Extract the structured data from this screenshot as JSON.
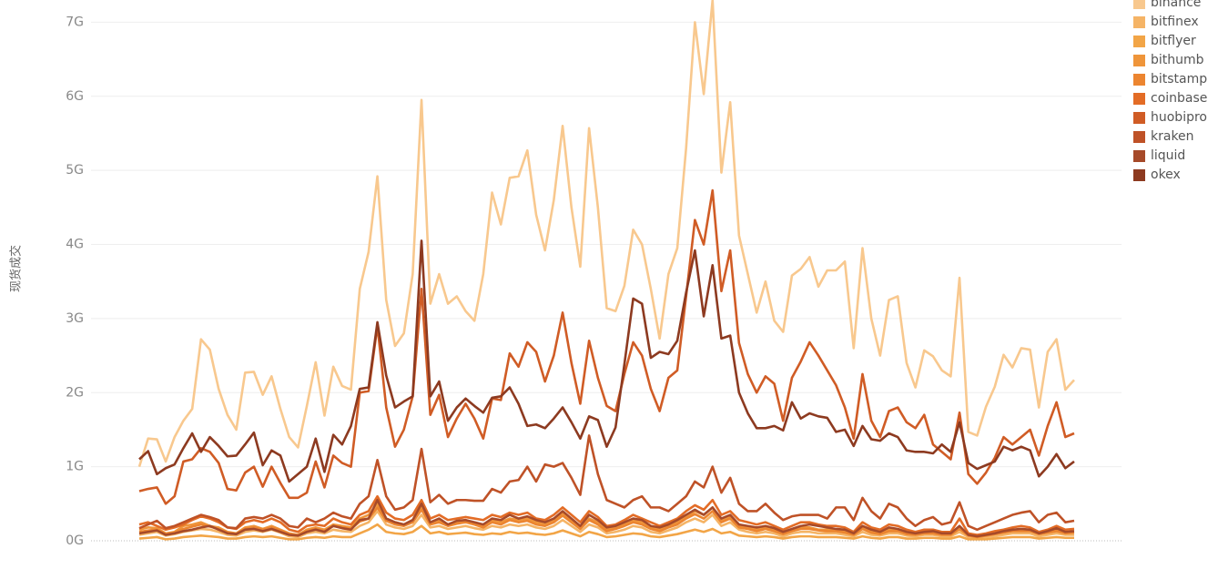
{
  "chart_data": {
    "type": "line",
    "y_label": "现货成交",
    "categories": [
      null,
      null,
      null,
      null,
      null,
      null,
      null,
      null,
      null,
      null,
      null,
      null,
      null,
      null,
      null,
      null,
      null,
      null,
      null,
      null,
      null,
      null,
      null,
      null,
      null,
      null,
      null,
      null,
      null,
      null,
      null,
      null,
      null,
      null,
      null,
      null,
      null,
      null,
      null,
      null,
      null,
      null,
      null,
      null,
      null,
      null,
      null,
      null,
      null,
      null,
      null,
      null,
      null,
      null,
      null,
      null,
      null,
      null,
      null,
      null,
      null,
      null,
      null,
      null,
      null,
      null,
      null,
      null,
      null,
      null,
      null,
      null,
      null,
      null,
      null,
      null,
      null,
      null,
      null,
      null,
      null,
      null,
      null,
      null,
      null,
      null,
      null,
      null,
      null,
      null,
      null,
      null,
      null,
      null,
      null,
      null,
      null,
      null,
      null,
      null,
      null,
      null,
      null,
      null,
      null,
      null,
      null
    ],
    "ylim": [
      0,
      7.3
    ],
    "yticks": [
      {
        "value": 0,
        "label": "0G"
      },
      {
        "value": 1,
        "label": "1G"
      },
      {
        "value": 2,
        "label": "2G"
      },
      {
        "value": 3,
        "label": "3G"
      },
      {
        "value": 4,
        "label": "4G"
      },
      {
        "value": 5,
        "label": "5G"
      },
      {
        "value": 6,
        "label": "6G"
      },
      {
        "value": 7,
        "label": "7G"
      }
    ],
    "grid": true,
    "legend": "right",
    "series": [
      {
        "name": "binance",
        "color": "#f8c88e",
        "values": [
          1.0,
          1.38,
          1.37,
          1.07,
          1.4,
          1.62,
          1.78,
          2.72,
          2.58,
          2.05,
          1.7,
          1.5,
          2.27,
          2.28,
          1.97,
          2.22,
          1.78,
          1.4,
          1.26,
          1.82,
          2.41,
          1.69,
          2.35,
          2.09,
          2.04,
          3.4,
          3.9,
          4.92,
          3.25,
          2.63,
          2.8,
          3.6,
          5.95,
          3.2,
          3.6,
          3.2,
          3.3,
          3.1,
          2.97,
          3.6,
          4.7,
          4.27,
          4.9,
          4.92,
          5.27,
          4.4,
          3.92,
          4.6,
          5.6,
          4.5,
          3.7,
          5.57,
          4.5,
          3.14,
          3.1,
          3.44,
          4.2,
          4.0,
          3.4,
          2.73,
          3.6,
          3.95,
          5.3,
          7.0,
          6.03,
          7.3,
          4.97,
          5.92,
          4.12,
          3.6,
          3.08,
          3.5,
          2.97,
          2.82,
          3.58,
          3.67,
          3.83,
          3.43,
          3.65,
          3.65,
          3.77,
          2.6,
          3.95,
          3.0,
          2.5,
          3.25,
          3.3,
          2.4,
          2.07,
          2.57,
          2.49,
          2.3,
          2.22,
          3.55,
          1.47,
          1.42,
          1.81,
          2.08,
          2.51,
          2.34,
          2.6,
          2.58,
          1.8,
          2.55,
          2.72,
          2.04,
          2.17
        ]
      },
      {
        "name": "bitfinex",
        "color": "#f5b466",
        "values": [
          0.08,
          0.1,
          0.12,
          0.07,
          0.09,
          0.12,
          0.14,
          0.16,
          0.15,
          0.12,
          0.08,
          0.07,
          0.12,
          0.14,
          0.12,
          0.15,
          0.11,
          0.06,
          0.05,
          0.1,
          0.12,
          0.1,
          0.15,
          0.13,
          0.12,
          0.2,
          0.25,
          0.4,
          0.22,
          0.18,
          0.16,
          0.2,
          0.35,
          0.18,
          0.2,
          0.16,
          0.18,
          0.2,
          0.17,
          0.15,
          0.2,
          0.18,
          0.22,
          0.2,
          0.22,
          0.18,
          0.16,
          0.2,
          0.28,
          0.2,
          0.12,
          0.22,
          0.18,
          0.1,
          0.12,
          0.15,
          0.2,
          0.18,
          0.12,
          0.1,
          0.14,
          0.18,
          0.25,
          0.3,
          0.25,
          0.35,
          0.2,
          0.25,
          0.15,
          0.12,
          0.1,
          0.12,
          0.1,
          0.06,
          0.1,
          0.12,
          0.12,
          0.1,
          0.1,
          0.1,
          0.08,
          0.06,
          0.12,
          0.08,
          0.07,
          0.1,
          0.1,
          0.07,
          0.06,
          0.08,
          0.08,
          0.06,
          0.06,
          0.12,
          0.05,
          0.04,
          0.05,
          0.06,
          0.08,
          0.1,
          0.1,
          0.1,
          0.06,
          0.08,
          0.1,
          0.08,
          0.08
        ]
      },
      {
        "name": "bitflyer",
        "color": "#f2a547",
        "values": [
          0.03,
          0.04,
          0.05,
          0.02,
          0.03,
          0.05,
          0.06,
          0.07,
          0.06,
          0.05,
          0.03,
          0.03,
          0.05,
          0.06,
          0.05,
          0.06,
          0.04,
          0.02,
          0.02,
          0.04,
          0.05,
          0.04,
          0.06,
          0.05,
          0.05,
          0.1,
          0.15,
          0.22,
          0.12,
          0.1,
          0.09,
          0.12,
          0.2,
          0.1,
          0.12,
          0.09,
          0.1,
          0.11,
          0.09,
          0.08,
          0.1,
          0.09,
          0.12,
          0.1,
          0.11,
          0.09,
          0.08,
          0.1,
          0.14,
          0.1,
          0.06,
          0.12,
          0.09,
          0.05,
          0.06,
          0.08,
          0.1,
          0.09,
          0.06,
          0.05,
          0.07,
          0.09,
          0.12,
          0.15,
          0.12,
          0.16,
          0.1,
          0.12,
          0.07,
          0.06,
          0.05,
          0.06,
          0.05,
          0.03,
          0.05,
          0.06,
          0.06,
          0.05,
          0.05,
          0.05,
          0.04,
          0.03,
          0.06,
          0.04,
          0.03,
          0.05,
          0.05,
          0.03,
          0.03,
          0.04,
          0.04,
          0.03,
          0.03,
          0.06,
          0.02,
          0.02,
          0.02,
          0.03,
          0.04,
          0.05,
          0.05,
          0.05,
          0.03,
          0.04,
          0.05,
          0.04,
          0.04
        ]
      },
      {
        "name": "bithumb",
        "color": "#ef953a",
        "values": [
          0.15,
          0.18,
          0.17,
          0.1,
          0.12,
          0.2,
          0.22,
          0.25,
          0.2,
          0.18,
          0.12,
          0.1,
          0.18,
          0.2,
          0.16,
          0.2,
          0.15,
          0.1,
          0.08,
          0.15,
          0.18,
          0.15,
          0.22,
          0.2,
          0.18,
          0.3,
          0.35,
          0.5,
          0.3,
          0.25,
          0.22,
          0.28,
          0.45,
          0.25,
          0.28,
          0.22,
          0.25,
          0.28,
          0.24,
          0.2,
          0.28,
          0.25,
          0.3,
          0.28,
          0.3,
          0.25,
          0.22,
          0.28,
          0.38,
          0.28,
          0.18,
          0.3,
          0.25,
          0.15,
          0.18,
          0.22,
          0.28,
          0.25,
          0.18,
          0.15,
          0.2,
          0.25,
          0.32,
          0.4,
          0.35,
          0.45,
          0.28,
          0.32,
          0.2,
          0.18,
          0.15,
          0.18,
          0.15,
          0.1,
          0.15,
          0.18,
          0.18,
          0.15,
          0.15,
          0.15,
          0.12,
          0.1,
          0.18,
          0.12,
          0.1,
          0.15,
          0.15,
          0.1,
          0.1,
          0.12,
          0.12,
          0.1,
          0.1,
          0.18,
          0.08,
          0.06,
          0.08,
          0.1,
          0.12,
          0.15,
          0.15,
          0.15,
          0.1,
          0.12,
          0.15,
          0.12,
          0.12
        ]
      },
      {
        "name": "bitstamp",
        "color": "#ec8530",
        "values": [
          0.12,
          0.14,
          0.15,
          0.09,
          0.11,
          0.16,
          0.19,
          0.22,
          0.19,
          0.16,
          0.11,
          0.09,
          0.16,
          0.18,
          0.15,
          0.18,
          0.14,
          0.09,
          0.07,
          0.13,
          0.16,
          0.13,
          0.2,
          0.18,
          0.16,
          0.26,
          0.3,
          0.45,
          0.27,
          0.22,
          0.2,
          0.25,
          0.42,
          0.22,
          0.25,
          0.2,
          0.23,
          0.25,
          0.22,
          0.18,
          0.25,
          0.22,
          0.28,
          0.25,
          0.27,
          0.22,
          0.2,
          0.25,
          0.34,
          0.25,
          0.16,
          0.28,
          0.22,
          0.13,
          0.16,
          0.2,
          0.25,
          0.22,
          0.16,
          0.13,
          0.18,
          0.22,
          0.3,
          0.36,
          0.3,
          0.4,
          0.25,
          0.3,
          0.18,
          0.16,
          0.13,
          0.16,
          0.13,
          0.09,
          0.13,
          0.16,
          0.16,
          0.14,
          0.13,
          0.13,
          0.11,
          0.08,
          0.16,
          0.11,
          0.09,
          0.13,
          0.13,
          0.09,
          0.08,
          0.1,
          0.1,
          0.08,
          0.08,
          0.16,
          0.07,
          0.05,
          0.07,
          0.09,
          0.11,
          0.13,
          0.13,
          0.13,
          0.09,
          0.11,
          0.13,
          0.1,
          0.11
        ]
      },
      {
        "name": "coinbase",
        "color": "#e36c26",
        "values": [
          0.22,
          0.25,
          0.2,
          0.15,
          0.18,
          0.22,
          0.28,
          0.33,
          0.3,
          0.25,
          0.18,
          0.16,
          0.25,
          0.28,
          0.25,
          0.3,
          0.25,
          0.15,
          0.12,
          0.2,
          0.22,
          0.2,
          0.3,
          0.25,
          0.22,
          0.35,
          0.4,
          0.6,
          0.38,
          0.3,
          0.28,
          0.35,
          0.55,
          0.3,
          0.35,
          0.28,
          0.3,
          0.32,
          0.3,
          0.28,
          0.35,
          0.32,
          0.38,
          0.35,
          0.38,
          0.3,
          0.28,
          0.35,
          0.45,
          0.35,
          0.25,
          0.4,
          0.32,
          0.2,
          0.22,
          0.28,
          0.35,
          0.3,
          0.25,
          0.2,
          0.25,
          0.3,
          0.4,
          0.48,
          0.42,
          0.55,
          0.35,
          0.4,
          0.28,
          0.25,
          0.22,
          0.25,
          0.2,
          0.15,
          0.2,
          0.25,
          0.25,
          0.22,
          0.2,
          0.2,
          0.18,
          0.12,
          0.25,
          0.18,
          0.15,
          0.22,
          0.2,
          0.15,
          0.12,
          0.15,
          0.15,
          0.12,
          0.12,
          0.3,
          0.1,
          0.08,
          0.1,
          0.13,
          0.15,
          0.18,
          0.2,
          0.18,
          0.12,
          0.15,
          0.2,
          0.15,
          0.16
        ]
      },
      {
        "name": "huobipro",
        "color": "#d05c25",
        "values": [
          0.67,
          0.7,
          0.72,
          0.5,
          0.6,
          1.07,
          1.1,
          1.25,
          1.2,
          1.05,
          0.7,
          0.68,
          0.92,
          1.0,
          0.73,
          1.0,
          0.78,
          0.58,
          0.58,
          0.65,
          1.07,
          0.72,
          1.15,
          1.05,
          1.0,
          2.0,
          2.02,
          2.9,
          1.8,
          1.27,
          1.5,
          1.95,
          3.4,
          1.7,
          1.97,
          1.4,
          1.65,
          1.85,
          1.65,
          1.38,
          1.92,
          1.9,
          2.53,
          2.35,
          2.68,
          2.55,
          2.15,
          2.5,
          3.08,
          2.4,
          1.85,
          2.7,
          2.2,
          1.82,
          1.75,
          2.25,
          2.68,
          2.5,
          2.05,
          1.75,
          2.2,
          2.3,
          3.3,
          4.33,
          4.0,
          4.73,
          3.37,
          3.92,
          2.67,
          2.25,
          2.0,
          2.22,
          2.12,
          1.62,
          2.2,
          2.42,
          2.68,
          2.5,
          2.3,
          2.1,
          1.8,
          1.38,
          2.25,
          1.62,
          1.4,
          1.75,
          1.8,
          1.6,
          1.52,
          1.7,
          1.3,
          1.2,
          1.1,
          1.73,
          0.9,
          0.77,
          0.92,
          1.12,
          1.4,
          1.3,
          1.4,
          1.5,
          1.15,
          1.55,
          1.87,
          1.4,
          1.45
        ]
      },
      {
        "name": "kraken",
        "color": "#bf5227",
        "values": [
          0.17,
          0.22,
          0.27,
          0.17,
          0.2,
          0.25,
          0.3,
          0.35,
          0.32,
          0.28,
          0.18,
          0.17,
          0.3,
          0.32,
          0.3,
          0.35,
          0.3,
          0.2,
          0.18,
          0.3,
          0.25,
          0.3,
          0.38,
          0.33,
          0.3,
          0.5,
          0.6,
          1.09,
          0.6,
          0.42,
          0.45,
          0.55,
          1.24,
          0.52,
          0.62,
          0.5,
          0.55,
          0.55,
          0.54,
          0.54,
          0.7,
          0.65,
          0.8,
          0.82,
          1.0,
          0.8,
          1.03,
          1.0,
          1.05,
          0.85,
          0.62,
          1.42,
          0.9,
          0.55,
          0.5,
          0.45,
          0.55,
          0.6,
          0.45,
          0.45,
          0.4,
          0.5,
          0.6,
          0.8,
          0.72,
          1.0,
          0.65,
          0.85,
          0.5,
          0.4,
          0.4,
          0.5,
          0.38,
          0.28,
          0.33,
          0.35,
          0.35,
          0.35,
          0.3,
          0.45,
          0.45,
          0.28,
          0.58,
          0.4,
          0.3,
          0.5,
          0.45,
          0.3,
          0.2,
          0.28,
          0.32,
          0.22,
          0.25,
          0.52,
          0.2,
          0.15,
          0.2,
          0.25,
          0.3,
          0.35,
          0.38,
          0.4,
          0.25,
          0.35,
          0.38,
          0.25,
          0.27
        ]
      },
      {
        "name": "liquid",
        "color": "#a64a29",
        "values": [
          0.1,
          0.12,
          0.14,
          0.08,
          0.1,
          0.13,
          0.15,
          0.18,
          0.2,
          0.15,
          0.1,
          0.09,
          0.15,
          0.16,
          0.13,
          0.16,
          0.12,
          0.08,
          0.07,
          0.12,
          0.15,
          0.12,
          0.2,
          0.17,
          0.15,
          0.28,
          0.3,
          0.55,
          0.3,
          0.25,
          0.22,
          0.28,
          0.5,
          0.25,
          0.3,
          0.22,
          0.27,
          0.28,
          0.25,
          0.22,
          0.3,
          0.28,
          0.35,
          0.3,
          0.33,
          0.28,
          0.25,
          0.3,
          0.4,
          0.3,
          0.2,
          0.35,
          0.28,
          0.18,
          0.2,
          0.25,
          0.3,
          0.28,
          0.2,
          0.18,
          0.22,
          0.28,
          0.35,
          0.42,
          0.35,
          0.45,
          0.3,
          0.35,
          0.22,
          0.2,
          0.18,
          0.2,
          0.17,
          0.12,
          0.16,
          0.2,
          0.22,
          0.2,
          0.18,
          0.16,
          0.15,
          0.1,
          0.2,
          0.15,
          0.12,
          0.18,
          0.16,
          0.12,
          0.1,
          0.12,
          0.13,
          0.1,
          0.1,
          0.2,
          0.08,
          0.06,
          0.08,
          0.1,
          0.13,
          0.15,
          0.16,
          0.15,
          0.1,
          0.13,
          0.17,
          0.12,
          0.13
        ]
      },
      {
        "name": "okex",
        "color": "#8d3a20",
        "values": [
          1.1,
          1.21,
          0.9,
          0.98,
          1.03,
          1.25,
          1.45,
          1.2,
          1.4,
          1.28,
          1.14,
          1.15,
          1.3,
          1.46,
          1.02,
          1.22,
          1.15,
          0.8,
          0.9,
          1.0,
          1.38,
          0.93,
          1.43,
          1.3,
          1.55,
          2.05,
          2.07,
          2.95,
          2.23,
          1.8,
          1.88,
          1.95,
          4.05,
          1.95,
          2.15,
          1.62,
          1.8,
          1.92,
          1.82,
          1.73,
          1.93,
          1.95,
          2.07,
          1.85,
          1.55,
          1.57,
          1.52,
          1.65,
          1.8,
          1.6,
          1.38,
          1.68,
          1.63,
          1.27,
          1.53,
          2.38,
          3.27,
          3.2,
          2.47,
          2.55,
          2.52,
          2.7,
          3.35,
          3.92,
          3.03,
          3.72,
          2.73,
          2.77,
          2.0,
          1.72,
          1.52,
          1.52,
          1.55,
          1.49,
          1.87,
          1.65,
          1.72,
          1.68,
          1.66,
          1.47,
          1.5,
          1.28,
          1.55,
          1.37,
          1.35,
          1.45,
          1.4,
          1.22,
          1.2,
          1.2,
          1.18,
          1.3,
          1.2,
          1.6,
          1.05,
          0.97,
          1.02,
          1.07,
          1.27,
          1.22,
          1.27,
          1.22,
          0.87,
          1.0,
          1.17,
          0.98,
          1.07
        ]
      }
    ]
  }
}
